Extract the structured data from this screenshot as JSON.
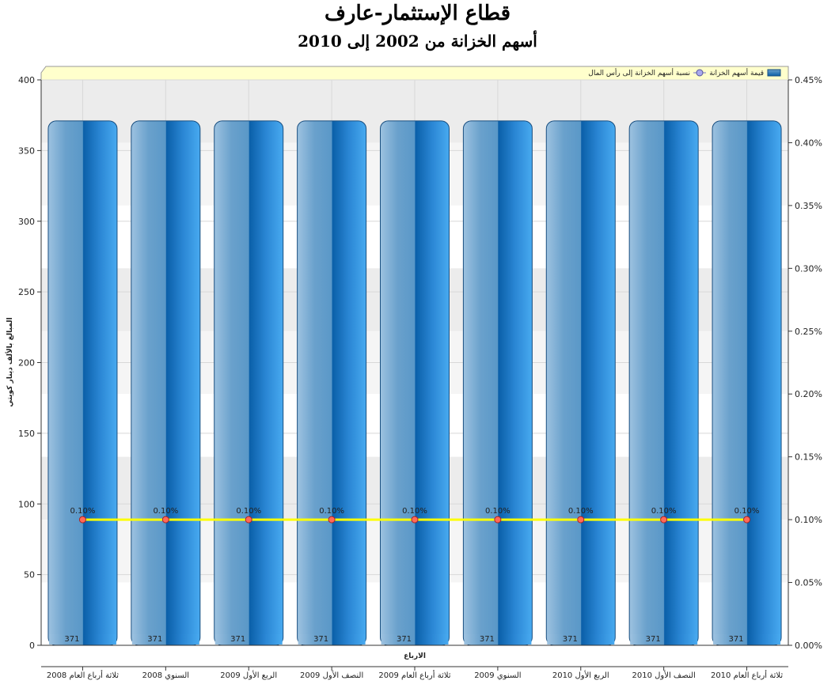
{
  "chart_data": {
    "type": "bar",
    "title": "قطاع الإستثمار-عارف",
    "subtitle": "أسهم الخزانة من 2002 إلى 2010",
    "xlabel": "الارباع",
    "ylabel": "المبالغ بالألف دينار كويتي",
    "categories": [
      "ثلاثة أرباع العام 2008",
      "السنوي 2008",
      "الربع الأول 2009",
      "النصف الأول 2009",
      "ثلاثة أرباع العام 2009",
      "السنوي 2009",
      "الربع الأول 2010",
      "النصف الأول 2010",
      "ثلاثة أرباع العام 2010"
    ],
    "ylim": [
      0,
      400
    ],
    "yticks": [
      "0",
      "50",
      "100",
      "150",
      "200",
      "250",
      "300",
      "350",
      "400"
    ],
    "y2lim": [
      0,
      0.45
    ],
    "y2ticks": [
      "0.00%",
      "0.05%",
      "0.10%",
      "0.15%",
      "0.20%",
      "0.25%",
      "0.30%",
      "0.35%",
      "0.40%",
      "0.45%"
    ],
    "legend_position": "top-right",
    "series": [
      {
        "name": "قيمة أسهم الخزانة",
        "type": "bar",
        "axis": "left",
        "color": "#1f7fcc",
        "values": [
          371,
          371,
          371,
          371,
          371,
          371,
          371,
          371,
          371
        ],
        "labels": [
          "371",
          "371",
          "371",
          "371",
          "371",
          "371",
          "371",
          "371",
          "371"
        ]
      },
      {
        "name": "نسبة أسهم الخزانة إلى رأس المال",
        "type": "line",
        "axis": "right",
        "color": "#ffff00",
        "values": [
          0.1,
          0.1,
          0.1,
          0.1,
          0.1,
          0.1,
          0.1,
          0.1,
          0.1
        ],
        "labels": [
          "0.10%",
          "0.10%",
          "0.10%",
          "0.10%",
          "0.10%",
          "0.10%",
          "0.10%",
          "0.10%",
          "0.10%"
        ]
      }
    ]
  }
}
